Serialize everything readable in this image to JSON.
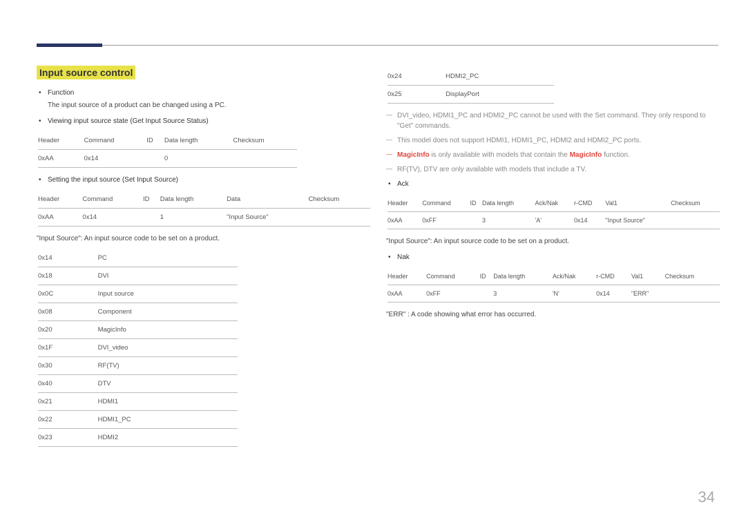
{
  "pageNumber": "34",
  "title": "Input source control",
  "left": {
    "b1": "Function",
    "b1sub": "The input source of a product can be changed using a PC.",
    "b2": "Viewing input source state (Get Input Source Status)",
    "t1": {
      "h1": "Header",
      "h2": "Command",
      "h3": "ID",
      "h4": "Data length",
      "h5": "Checksum",
      "r1c1": "0xAA",
      "r1c2": "0x14",
      "r1c3": "",
      "r1c4": "0",
      "r1c5": ""
    },
    "b3": "Setting the input source (Set Input Source)",
    "t2": {
      "h1": "Header",
      "h2": "Command",
      "h3": "ID",
      "h4": "Data length",
      "h5": "Data",
      "h6": "Checksum",
      "r1c1": "0xAA",
      "r1c2": "0x14",
      "r1c3": "",
      "r1c4": "1",
      "r1c5": "\"Input Source\"",
      "r1c6": ""
    },
    "note1": "\"Input Source\": An input source code to be set on a product.",
    "codes": [
      {
        "k": "0x14",
        "v": "PC"
      },
      {
        "k": "0x18",
        "v": "DVI"
      },
      {
        "k": "0x0C",
        "v": "Input source"
      },
      {
        "k": "0x08",
        "v": "Component"
      },
      {
        "k": "0x20",
        "v": "MagicInfo"
      },
      {
        "k": "0x1F",
        "v": "DVI_video"
      },
      {
        "k": "0x30",
        "v": "RF(TV)"
      },
      {
        "k": "0x40",
        "v": "DTV"
      },
      {
        "k": "0x21",
        "v": "HDMI1"
      },
      {
        "k": "0x22",
        "v": "HDMI1_PC"
      },
      {
        "k": "0x23",
        "v": "HDMI2"
      }
    ]
  },
  "right": {
    "codes": [
      {
        "k": "0x24",
        "v": "HDMI2_PC"
      },
      {
        "k": "0x25",
        "v": "DisplayPort"
      }
    ],
    "d1a": "DVI_video, HDMI1_PC and HDMI2_PC cannot be used with the Set command. They only respond to \"Get\" commands.",
    "d2": "This model does not support HDMI1, HDMI1_PC, HDMI2 and HDMI2_PC ports.",
    "d3a": "MagicInfo",
    "d3b": " is only available with models that contain the ",
    "d3c": "MagicInfo",
    "d3d": " function.",
    "d4": "RF(TV), DTV are only available with models that include a TV.",
    "b1": "Ack",
    "t1": {
      "h1": "Header",
      "h2": "Command",
      "h3": "ID",
      "h4": "Data length",
      "h5": "Ack/Nak",
      "h6": "r-CMD",
      "h7": "Val1",
      "h8": "Checksum",
      "r1c1": "0xAA",
      "r1c2": "0xFF",
      "r1c3": "",
      "r1c4": "3",
      "r1c5": "'A'",
      "r1c6": "0x14",
      "r1c7": "\"Input Source\"",
      "r1c8": ""
    },
    "note1": "\"Input Source\": An input source code to be set on a product.",
    "b2": "Nak",
    "t2": {
      "h1": "Header",
      "h2": "Command",
      "h3": "ID",
      "h4": "Data length",
      "h5": "Ack/Nak",
      "h6": "r-CMD",
      "h7": "Val1",
      "h8": "Checksum",
      "r1c1": "0xAA",
      "r1c2": "0xFF",
      "r1c3": "",
      "r1c4": "3",
      "r1c5": "'N'",
      "r1c6": "0x14",
      "r1c7": "\"ERR\"",
      "r1c8": ""
    },
    "note2": "\"ERR\" : A code showing what error has occurred."
  }
}
